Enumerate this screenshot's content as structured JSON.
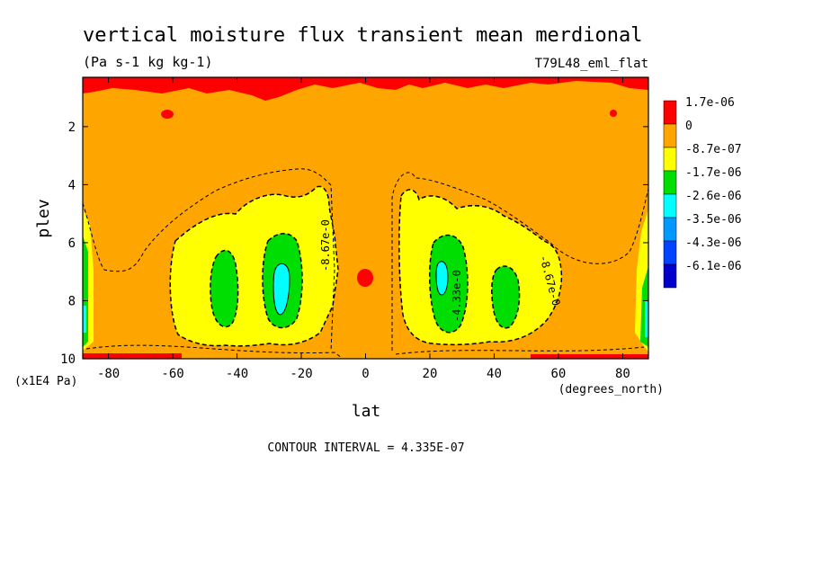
{
  "chart_data": {
    "type": "heatmap",
    "title": "vertical moisture flux transient mean merdional",
    "units": "(Pa s-1 kg kg-1)",
    "dataset": "T79L48_eml_flat",
    "xlabel": "lat",
    "xunits": "(degrees_north)",
    "ylabel": "plev",
    "yunits": "(x1E4 Pa)",
    "xlim": [
      -88,
      88
    ],
    "ylim": [
      10,
      0.3
    ],
    "x_ticks": [
      -80,
      -60,
      -40,
      -20,
      0,
      20,
      40,
      60,
      80
    ],
    "x_tick_labels": [
      "-80",
      "-60",
      "-40",
      "-20",
      "0",
      "20",
      "40",
      "60",
      "80"
    ],
    "y_ticks": [
      2,
      4,
      6,
      8,
      10
    ],
    "y_tick_labels": [
      "2",
      "4",
      "6",
      "8",
      "10"
    ],
    "contour_interval_text": "CONTOUR INTERVAL = 4.335E-07",
    "contour_labels": [
      "-8.67e-0",
      "-8.67e-0",
      "-4.33e-0"
    ],
    "colorbar": {
      "levels": [
        "1.7e-06",
        "0",
        "-8.7e-07",
        "-1.7e-06",
        "-2.6e-06",
        "-3.5e-06",
        "-4.3e-06",
        "-6.1e-06"
      ],
      "colors": [
        "#ff0000",
        "#ffa500",
        "#ffff00",
        "#00dd00",
        "#00ffff",
        "#0099ff",
        "#0044ff",
        "#0000cc"
      ]
    },
    "features": [
      {
        "lat_min": -50,
        "lat_max": -39,
        "plev_min": 6.0,
        "plev_max": 8.8,
        "class": "-2.6e-06"
      },
      {
        "lat_min": -32,
        "lat_max": -20,
        "plev_min": 5.2,
        "plev_max": 8.8,
        "class": "-2.6e-06"
      },
      {
        "lat_min": -29,
        "lat_max": -23,
        "plev_min": 6.5,
        "plev_max": 8.6,
        "class": "-3.5e-06"
      },
      {
        "lat_min": 20,
        "lat_max": 33,
        "plev_min": 5.5,
        "plev_max": 8.8,
        "class": "-2.6e-06"
      },
      {
        "lat_min": 23,
        "lat_max": 28,
        "plev_min": 6.8,
        "plev_max": 8.0,
        "class": "-3.5e-06"
      },
      {
        "lat_min": 39,
        "lat_max": 47,
        "plev_min": 6.8,
        "plev_max": 8.9,
        "class": "-2.6e-06"
      },
      {
        "lat_min": -3,
        "lat_max": 3,
        "plev_min": 6.8,
        "plev_max": 7.5,
        "class": "1.7e-06"
      }
    ]
  }
}
